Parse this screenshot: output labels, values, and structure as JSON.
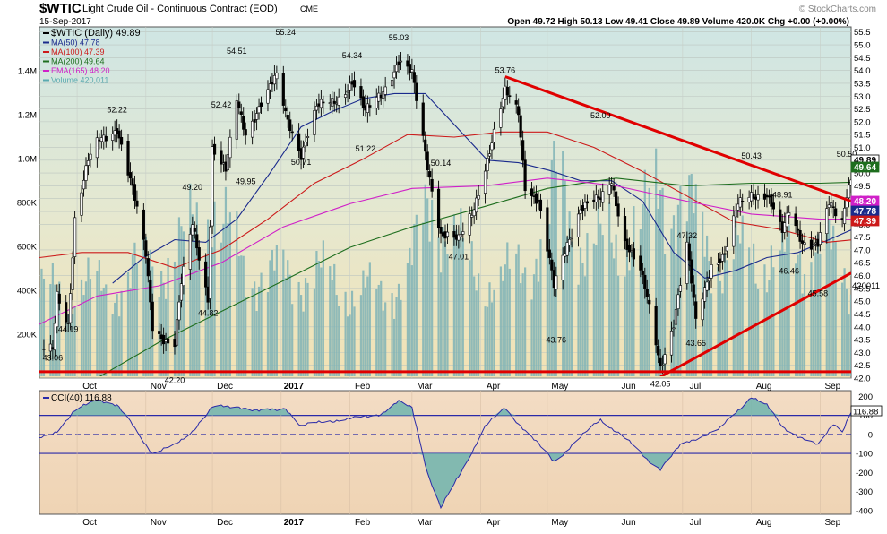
{
  "header": {
    "symbol": "$WTIC",
    "title": "Light Crude Oil - Continuous Contract (EOD)",
    "exchange": "CME",
    "date": "15-Sep-2017",
    "quote": "Open 49.72  High 50.13  Low 49.41  Close 49.89  Volume 420.0K  Chg +0.00 (+0.00%)",
    "watermark": "© StockCharts.com"
  },
  "legend": [
    {
      "label": "$WTIC (Daily) 49.89",
      "color": "#000000"
    },
    {
      "label": "MA(50) 47.78",
      "color": "#1a2a8c"
    },
    {
      "label": "MA(100) 47.39",
      "color": "#cc1a1a"
    },
    {
      "label": "MA(200) 49.64",
      "color": "#1e6e1e"
    },
    {
      "label": "EMA(165) 48.20",
      "color": "#d020c8"
    },
    {
      "label": "Volume 420,011",
      "color": "#5aaab0"
    }
  ],
  "cci_legend": {
    "label": "CCI(40) 116.88",
    "color": "#2a2aa8"
  },
  "x_ticks": [
    "Oct",
    "Nov",
    "Dec",
    "2017",
    "Feb",
    "Mar",
    "Apr",
    "May",
    "Jun",
    "Jul",
    "Aug",
    "Sep"
  ],
  "price_axis_labels": [
    "55.5",
    "55.0",
    "54.5",
    "54.0",
    "53.5",
    "53.0",
    "52.5",
    "52.0",
    "51.5",
    "51.0",
    "50.5",
    "50.0",
    "49.5",
    "49.0",
    "48.5",
    "48.0",
    "47.5",
    "47.0",
    "46.5",
    "46.0",
    "45.5",
    "45.0",
    "44.5",
    "44.0",
    "43.5",
    "43.0",
    "42.5",
    "42.0"
  ],
  "volume_axis_labels": [
    "1.4M",
    "1.2M",
    "1.0M",
    "800K",
    "600K",
    "400K",
    "200K"
  ],
  "cci_axis_labels": [
    "200",
    "100",
    "0",
    "-100",
    "-200",
    "-300",
    "-400"
  ],
  "price_tags": [
    {
      "text": "49.89",
      "color": "#000000",
      "bg": "#ffffff"
    },
    {
      "text": "49.64",
      "color": "#ffffff",
      "bg": "#1e6e1e"
    },
    {
      "text": "48.20",
      "color": "#ffffff",
      "bg": "#d020c8"
    },
    {
      "text": "47.78",
      "color": "#ffffff",
      "bg": "#1a2a8c"
    },
    {
      "text": "47.39",
      "color": "#ffffff",
      "bg": "#cc1a1a"
    }
  ],
  "volume_tag": "420011",
  "cci_tag": "116.88",
  "annotations": [
    {
      "date": "2016-09-20",
      "price": 43.06,
      "text": "43.06",
      "pos": "below"
    },
    {
      "date": "2016-09-27",
      "price": 44.19,
      "text": "44.19",
      "pos": "below"
    },
    {
      "date": "2016-10-19",
      "price": 52.22,
      "text": "52.22",
      "pos": "above"
    },
    {
      "date": "2016-11-14",
      "price": 42.2,
      "text": "42.20",
      "pos": "below"
    },
    {
      "date": "2016-11-22",
      "price": 49.2,
      "text": "49.20",
      "pos": "above"
    },
    {
      "date": "2016-11-29",
      "price": 44.82,
      "text": "44.82",
      "pos": "below"
    },
    {
      "date": "2016-12-05",
      "price": 52.42,
      "text": "52.42",
      "pos": "above"
    },
    {
      "date": "2016-12-12",
      "price": 54.51,
      "text": "54.51",
      "pos": "above"
    },
    {
      "date": "2016-12-16",
      "price": 49.95,
      "text": "49.95",
      "pos": "below"
    },
    {
      "date": "2017-01-03",
      "price": 55.24,
      "text": "55.24",
      "pos": "above"
    },
    {
      "date": "2017-01-10",
      "price": 50.71,
      "text": "50.71",
      "pos": "below"
    },
    {
      "date": "2017-02-02",
      "price": 54.34,
      "text": "54.34",
      "pos": "above"
    },
    {
      "date": "2017-02-08",
      "price": 51.22,
      "text": "51.22",
      "pos": "below"
    },
    {
      "date": "2017-02-23",
      "price": 55.03,
      "text": "55.03",
      "pos": "above"
    },
    {
      "date": "2017-03-14",
      "price": 50.14,
      "text": "50.14",
      "pos": "above"
    },
    {
      "date": "2017-03-22",
      "price": 47.01,
      "text": "47.01",
      "pos": "below"
    },
    {
      "date": "2017-04-12",
      "price": 53.76,
      "text": "53.76",
      "pos": "above"
    },
    {
      "date": "2017-05-05",
      "price": 43.76,
      "text": "43.76",
      "pos": "below"
    },
    {
      "date": "2017-05-25",
      "price": 52.0,
      "text": "52.00",
      "pos": "above"
    },
    {
      "date": "2017-06-21",
      "price": 42.05,
      "text": "42.05",
      "pos": "below"
    },
    {
      "date": "2017-07-03",
      "price": 47.32,
      "text": "47.32",
      "pos": "above"
    },
    {
      "date": "2017-07-07",
      "price": 43.65,
      "text": "43.65",
      "pos": "below"
    },
    {
      "date": "2017-08-01",
      "price": 50.43,
      "text": "50.43",
      "pos": "above"
    },
    {
      "date": "2017-08-15",
      "price": 48.91,
      "text": "48.91",
      "pos": "above"
    },
    {
      "date": "2017-08-18",
      "price": 46.46,
      "text": "46.46",
      "pos": "below"
    },
    {
      "date": "2017-08-31",
      "price": 45.58,
      "text": "45.58",
      "pos": "below"
    },
    {
      "date": "2017-09-13",
      "price": 50.5,
      "text": "50.50",
      "pos": "above"
    }
  ],
  "trendlines": [
    {
      "from": [
        "2017-04-12",
        53.76
      ],
      "to": [
        "2017-09-15",
        48.9
      ],
      "color": "#e00000"
    },
    {
      "from": [
        "2017-06-21",
        42.05
      ],
      "to": [
        "2017-09-15",
        46.1
      ],
      "color": "#e00000"
    },
    {
      "from": [
        "2016-09-14",
        42.25
      ],
      "to": [
        "2017-09-15",
        42.25
      ],
      "color": "#e00000"
    }
  ],
  "chart_data": {
    "type": "line",
    "ylim": [
      42.0,
      55.7
    ],
    "xlim": [
      "2016-09-14",
      "2017-09-15"
    ],
    "price_series": {
      "name": "$WTIC (Daily)",
      "points": [
        [
          "2016-09-16",
          43.06
        ],
        [
          "2016-09-20",
          43.06
        ],
        [
          "2016-09-22",
          45.3
        ],
        [
          "2016-09-27",
          44.19
        ],
        [
          "2016-09-30",
          48.2
        ],
        [
          "2016-10-06",
          50.4
        ],
        [
          "2016-10-11",
          51.3
        ],
        [
          "2016-10-19",
          51.8
        ],
        [
          "2016-10-26",
          49.3
        ],
        [
          "2016-11-01",
          46.8
        ],
        [
          "2016-11-04",
          44.1
        ],
        [
          "2016-11-11",
          43.4
        ],
        [
          "2016-11-14",
          43.3
        ],
        [
          "2016-11-17",
          45.6
        ],
        [
          "2016-11-22",
          48.0
        ],
        [
          "2016-11-29",
          45.2
        ],
        [
          "2016-12-01",
          51.0
        ],
        [
          "2016-12-07",
          50.0
        ],
        [
          "2016-12-12",
          52.8
        ],
        [
          "2016-12-16",
          51.6
        ],
        [
          "2016-12-22",
          52.6
        ],
        [
          "2016-12-30",
          53.7
        ],
        [
          "2017-01-03",
          52.3
        ],
        [
          "2017-01-10",
          50.8
        ],
        [
          "2017-01-17",
          52.5
        ],
        [
          "2017-01-25",
          52.8
        ],
        [
          "2017-02-02",
          53.6
        ],
        [
          "2017-02-08",
          52.3
        ],
        [
          "2017-02-15",
          53.1
        ],
        [
          "2017-02-23",
          54.4
        ],
        [
          "2017-03-01",
          53.8
        ],
        [
          "2017-03-08",
          50.3
        ],
        [
          "2017-03-14",
          47.7
        ],
        [
          "2017-03-22",
          47.3
        ],
        [
          "2017-03-28",
          48.4
        ],
        [
          "2017-04-03",
          50.3
        ],
        [
          "2017-04-12",
          53.1
        ],
        [
          "2017-04-18",
          52.4
        ],
        [
          "2017-04-21",
          49.6
        ],
        [
          "2017-04-27",
          48.9
        ],
        [
          "2017-05-04",
          45.5
        ],
        [
          "2017-05-10",
          47.3
        ],
        [
          "2017-05-16",
          48.7
        ],
        [
          "2017-05-25",
          48.9
        ],
        [
          "2017-05-30",
          49.7
        ],
        [
          "2017-06-05",
          47.4
        ],
        [
          "2017-06-12",
          46.1
        ],
        [
          "2017-06-16",
          44.7
        ],
        [
          "2017-06-21",
          42.5
        ],
        [
          "2017-06-27",
          44.2
        ],
        [
          "2017-07-03",
          47.1
        ],
        [
          "2017-07-07",
          44.2
        ],
        [
          "2017-07-14",
          46.5
        ],
        [
          "2017-07-20",
          46.8
        ],
        [
          "2017-07-26",
          48.7
        ],
        [
          "2017-08-01",
          49.2
        ],
        [
          "2017-08-08",
          49.2
        ],
        [
          "2017-08-15",
          47.6
        ],
        [
          "2017-08-18",
          48.5
        ],
        [
          "2017-08-24",
          47.4
        ],
        [
          "2017-08-31",
          47.2
        ],
        [
          "2017-09-05",
          48.7
        ],
        [
          "2017-09-11",
          48.1
        ],
        [
          "2017-09-13",
          49.3
        ],
        [
          "2017-09-15",
          49.89
        ]
      ]
    },
    "ma_series": [
      {
        "name": "MA(50)",
        "color": "#1a2a8c",
        "points": [
          [
            "2016-10-17",
            45.7
          ],
          [
            "2016-10-31",
            46.7
          ],
          [
            "2016-11-14",
            47.4
          ],
          [
            "2016-11-28",
            47.3
          ],
          [
            "2016-12-12",
            48.2
          ],
          [
            "2016-12-27",
            50.0
          ],
          [
            "2017-01-10",
            51.8
          ],
          [
            "2017-01-24",
            52.4
          ],
          [
            "2017-02-07",
            52.9
          ],
          [
            "2017-02-21",
            53.1
          ],
          [
            "2017-03-07",
            53.1
          ],
          [
            "2017-03-21",
            51.8
          ],
          [
            "2017-04-04",
            50.5
          ],
          [
            "2017-04-18",
            50.4
          ],
          [
            "2017-05-02",
            50.1
          ],
          [
            "2017-05-16",
            49.7
          ],
          [
            "2017-05-30",
            49.7
          ],
          [
            "2017-06-13",
            48.9
          ],
          [
            "2017-06-27",
            46.9
          ],
          [
            "2017-07-11",
            45.9
          ],
          [
            "2017-07-25",
            46.2
          ],
          [
            "2017-08-08",
            46.7
          ],
          [
            "2017-08-22",
            46.9
          ],
          [
            "2017-09-05",
            47.4
          ],
          [
            "2017-09-15",
            47.78
          ]
        ]
      },
      {
        "name": "MA(100)",
        "color": "#cc1a1a",
        "points": [
          [
            "2016-09-14",
            46.7
          ],
          [
            "2016-10-03",
            46.9
          ],
          [
            "2016-10-24",
            46.9
          ],
          [
            "2016-11-14",
            46.3
          ],
          [
            "2016-12-05",
            47.0
          ],
          [
            "2016-12-26",
            48.2
          ],
          [
            "2017-01-16",
            49.6
          ],
          [
            "2017-02-06",
            50.5
          ],
          [
            "2017-02-27",
            51.5
          ],
          [
            "2017-03-20",
            51.4
          ],
          [
            "2017-04-10",
            51.6
          ],
          [
            "2017-05-01",
            51.6
          ],
          [
            "2017-05-22",
            51.0
          ],
          [
            "2017-06-12",
            50.1
          ],
          [
            "2017-07-03",
            49.1
          ],
          [
            "2017-07-24",
            48.1
          ],
          [
            "2017-08-14",
            47.8
          ],
          [
            "2017-09-04",
            47.3
          ],
          [
            "2017-09-15",
            47.39
          ]
        ]
      },
      {
        "name": "MA(200)",
        "color": "#1e6e1e",
        "points": [
          [
            "2016-09-14",
            40.6
          ],
          [
            "2016-10-10",
            42.0
          ],
          [
            "2016-11-07",
            43.4
          ],
          [
            "2016-12-05",
            44.6
          ],
          [
            "2017-01-02",
            45.8
          ],
          [
            "2017-02-01",
            47.1
          ],
          [
            "2017-03-01",
            47.9
          ],
          [
            "2017-04-03",
            48.7
          ],
          [
            "2017-05-01",
            49.4
          ],
          [
            "2017-06-01",
            49.8
          ],
          [
            "2017-07-03",
            49.5
          ],
          [
            "2017-08-01",
            49.6
          ],
          [
            "2017-09-01",
            49.6
          ],
          [
            "2017-09-15",
            49.64
          ]
        ]
      },
      {
        "name": "EMA(165)",
        "color": "#d020c8",
        "points": [
          [
            "2016-09-14",
            44.1
          ],
          [
            "2016-10-10",
            45.2
          ],
          [
            "2016-11-07",
            45.6
          ],
          [
            "2016-12-05",
            46.5
          ],
          [
            "2017-01-02",
            47.9
          ],
          [
            "2017-02-01",
            48.8
          ],
          [
            "2017-03-01",
            49.4
          ],
          [
            "2017-04-03",
            49.5
          ],
          [
            "2017-05-01",
            49.8
          ],
          [
            "2017-06-01",
            49.5
          ],
          [
            "2017-07-03",
            48.9
          ],
          [
            "2017-08-01",
            48.4
          ],
          [
            "2017-09-01",
            48.2
          ],
          [
            "2017-09-15",
            48.2
          ]
        ]
      }
    ],
    "volume": {
      "name": "Volume",
      "ylim": [
        0,
        1600000
      ],
      "points": [
        [
          "2016-09-16",
          380000
        ],
        [
          "2016-10-01",
          420000
        ],
        [
          "2016-10-15",
          400000
        ],
        [
          "2016-11-01",
          520000
        ],
        [
          "2016-11-15",
          560000
        ],
        [
          "2016-12-01",
          800000
        ],
        [
          "2016-12-15",
          500000
        ],
        [
          "2017-01-01",
          460000
        ],
        [
          "2017-01-15",
          480000
        ],
        [
          "2017-02-01",
          400000
        ],
        [
          "2017-02-15",
          380000
        ],
        [
          "2017-03-01",
          500000
        ],
        [
          "2017-03-10",
          850000
        ],
        [
          "2017-03-25",
          520000
        ],
        [
          "2017-04-10",
          420000
        ],
        [
          "2017-05-01",
          640000
        ],
        [
          "2017-05-05",
          900000
        ],
        [
          "2017-05-20",
          560000
        ],
        [
          "2017-06-01",
          640000
        ],
        [
          "2017-06-15",
          700000
        ],
        [
          "2017-06-21",
          900000
        ],
        [
          "2017-07-05",
          720000
        ],
        [
          "2017-07-20",
          520000
        ],
        [
          "2017-08-01",
          580000
        ],
        [
          "2017-08-15",
          520000
        ],
        [
          "2017-09-01",
          620000
        ],
        [
          "2017-09-15",
          420011
        ]
      ]
    },
    "cci": {
      "name": "CCI(40)",
      "ylim": [
        -420,
        230
      ],
      "points": [
        [
          "2016-09-14",
          -20
        ],
        [
          "2016-09-22",
          20
        ],
        [
          "2016-09-30",
          120
        ],
        [
          "2016-10-10",
          190
        ],
        [
          "2016-10-19",
          150
        ],
        [
          "2016-10-26",
          50
        ],
        [
          "2016-11-04",
          -100
        ],
        [
          "2016-11-14",
          -60
        ],
        [
          "2016-11-22",
          20
        ],
        [
          "2016-12-01",
          140
        ],
        [
          "2016-12-12",
          150
        ],
        [
          "2016-12-22",
          120
        ],
        [
          "2017-01-03",
          140
        ],
        [
          "2017-01-10",
          40
        ],
        [
          "2017-01-20",
          70
        ],
        [
          "2017-02-02",
          80
        ],
        [
          "2017-02-15",
          110
        ],
        [
          "2017-02-23",
          170
        ],
        [
          "2017-03-01",
          140
        ],
        [
          "2017-03-08",
          -200
        ],
        [
          "2017-03-14",
          -390
        ],
        [
          "2017-03-22",
          -220
        ],
        [
          "2017-04-03",
          40
        ],
        [
          "2017-04-12",
          140
        ],
        [
          "2017-04-21",
          20
        ],
        [
          "2017-05-04",
          -140
        ],
        [
          "2017-05-12",
          -60
        ],
        [
          "2017-05-25",
          80
        ],
        [
          "2017-06-05",
          -20
        ],
        [
          "2017-06-14",
          -120
        ],
        [
          "2017-06-21",
          -180
        ],
        [
          "2017-06-30",
          -60
        ],
        [
          "2017-07-07",
          -20
        ],
        [
          "2017-07-18",
          30
        ],
        [
          "2017-08-01",
          200
        ],
        [
          "2017-08-08",
          150
        ],
        [
          "2017-08-15",
          40
        ],
        [
          "2017-08-24",
          -20
        ],
        [
          "2017-08-31",
          -60
        ],
        [
          "2017-09-07",
          60
        ],
        [
          "2017-09-11",
          20
        ],
        [
          "2017-09-15",
          116.88
        ]
      ]
    }
  }
}
